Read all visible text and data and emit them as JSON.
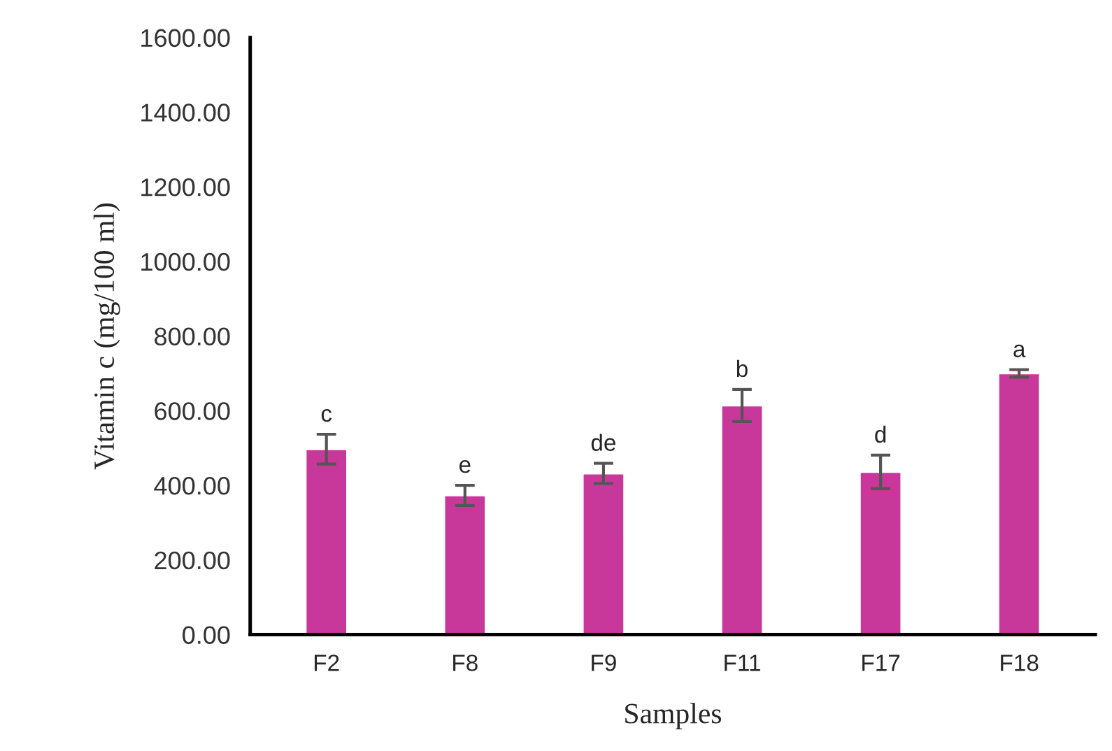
{
  "chart_data": {
    "type": "bar",
    "xlabel": "Samples",
    "ylabel": "Vitamin c (mg/100 ml)",
    "categories": [
      "F2",
      "F8",
      "F9",
      "F11",
      "F17",
      "F18"
    ],
    "values": [
      497,
      373,
      432,
      614,
      436,
      700
    ],
    "errors": [
      40,
      27,
      27,
      43,
      45,
      10
    ],
    "color": "#c8379a",
    "ylim": [
      0,
      1600
    ],
    "yticks": [
      {
        "value": 0,
        "label": "0.00"
      },
      {
        "value": 200,
        "label": "200.00"
      },
      {
        "value": 400,
        "label": "400.00"
      },
      {
        "value": 600,
        "label": "600.00"
      },
      {
        "value": 800,
        "label": "800.00"
      },
      {
        "value": 1000,
        "label": "1000.00"
      },
      {
        "value": 1200,
        "label": "1200.00"
      },
      {
        "value": 1400,
        "label": "1400.00"
      },
      {
        "value": 1600,
        "label": "1600.00"
      }
    ],
    "annotations": [
      {
        "text": "c",
        "x": "F2",
        "y": 537
      },
      {
        "text": "e",
        "x": "F8",
        "y": 400
      },
      {
        "text": "de",
        "x": "F9",
        "y": 459
      },
      {
        "text": "b",
        "x": "F11",
        "y": 657
      },
      {
        "text": "d",
        "x": "F17",
        "y": 481
      },
      {
        "text": "a",
        "x": "F18",
        "y": 710
      }
    ]
  }
}
